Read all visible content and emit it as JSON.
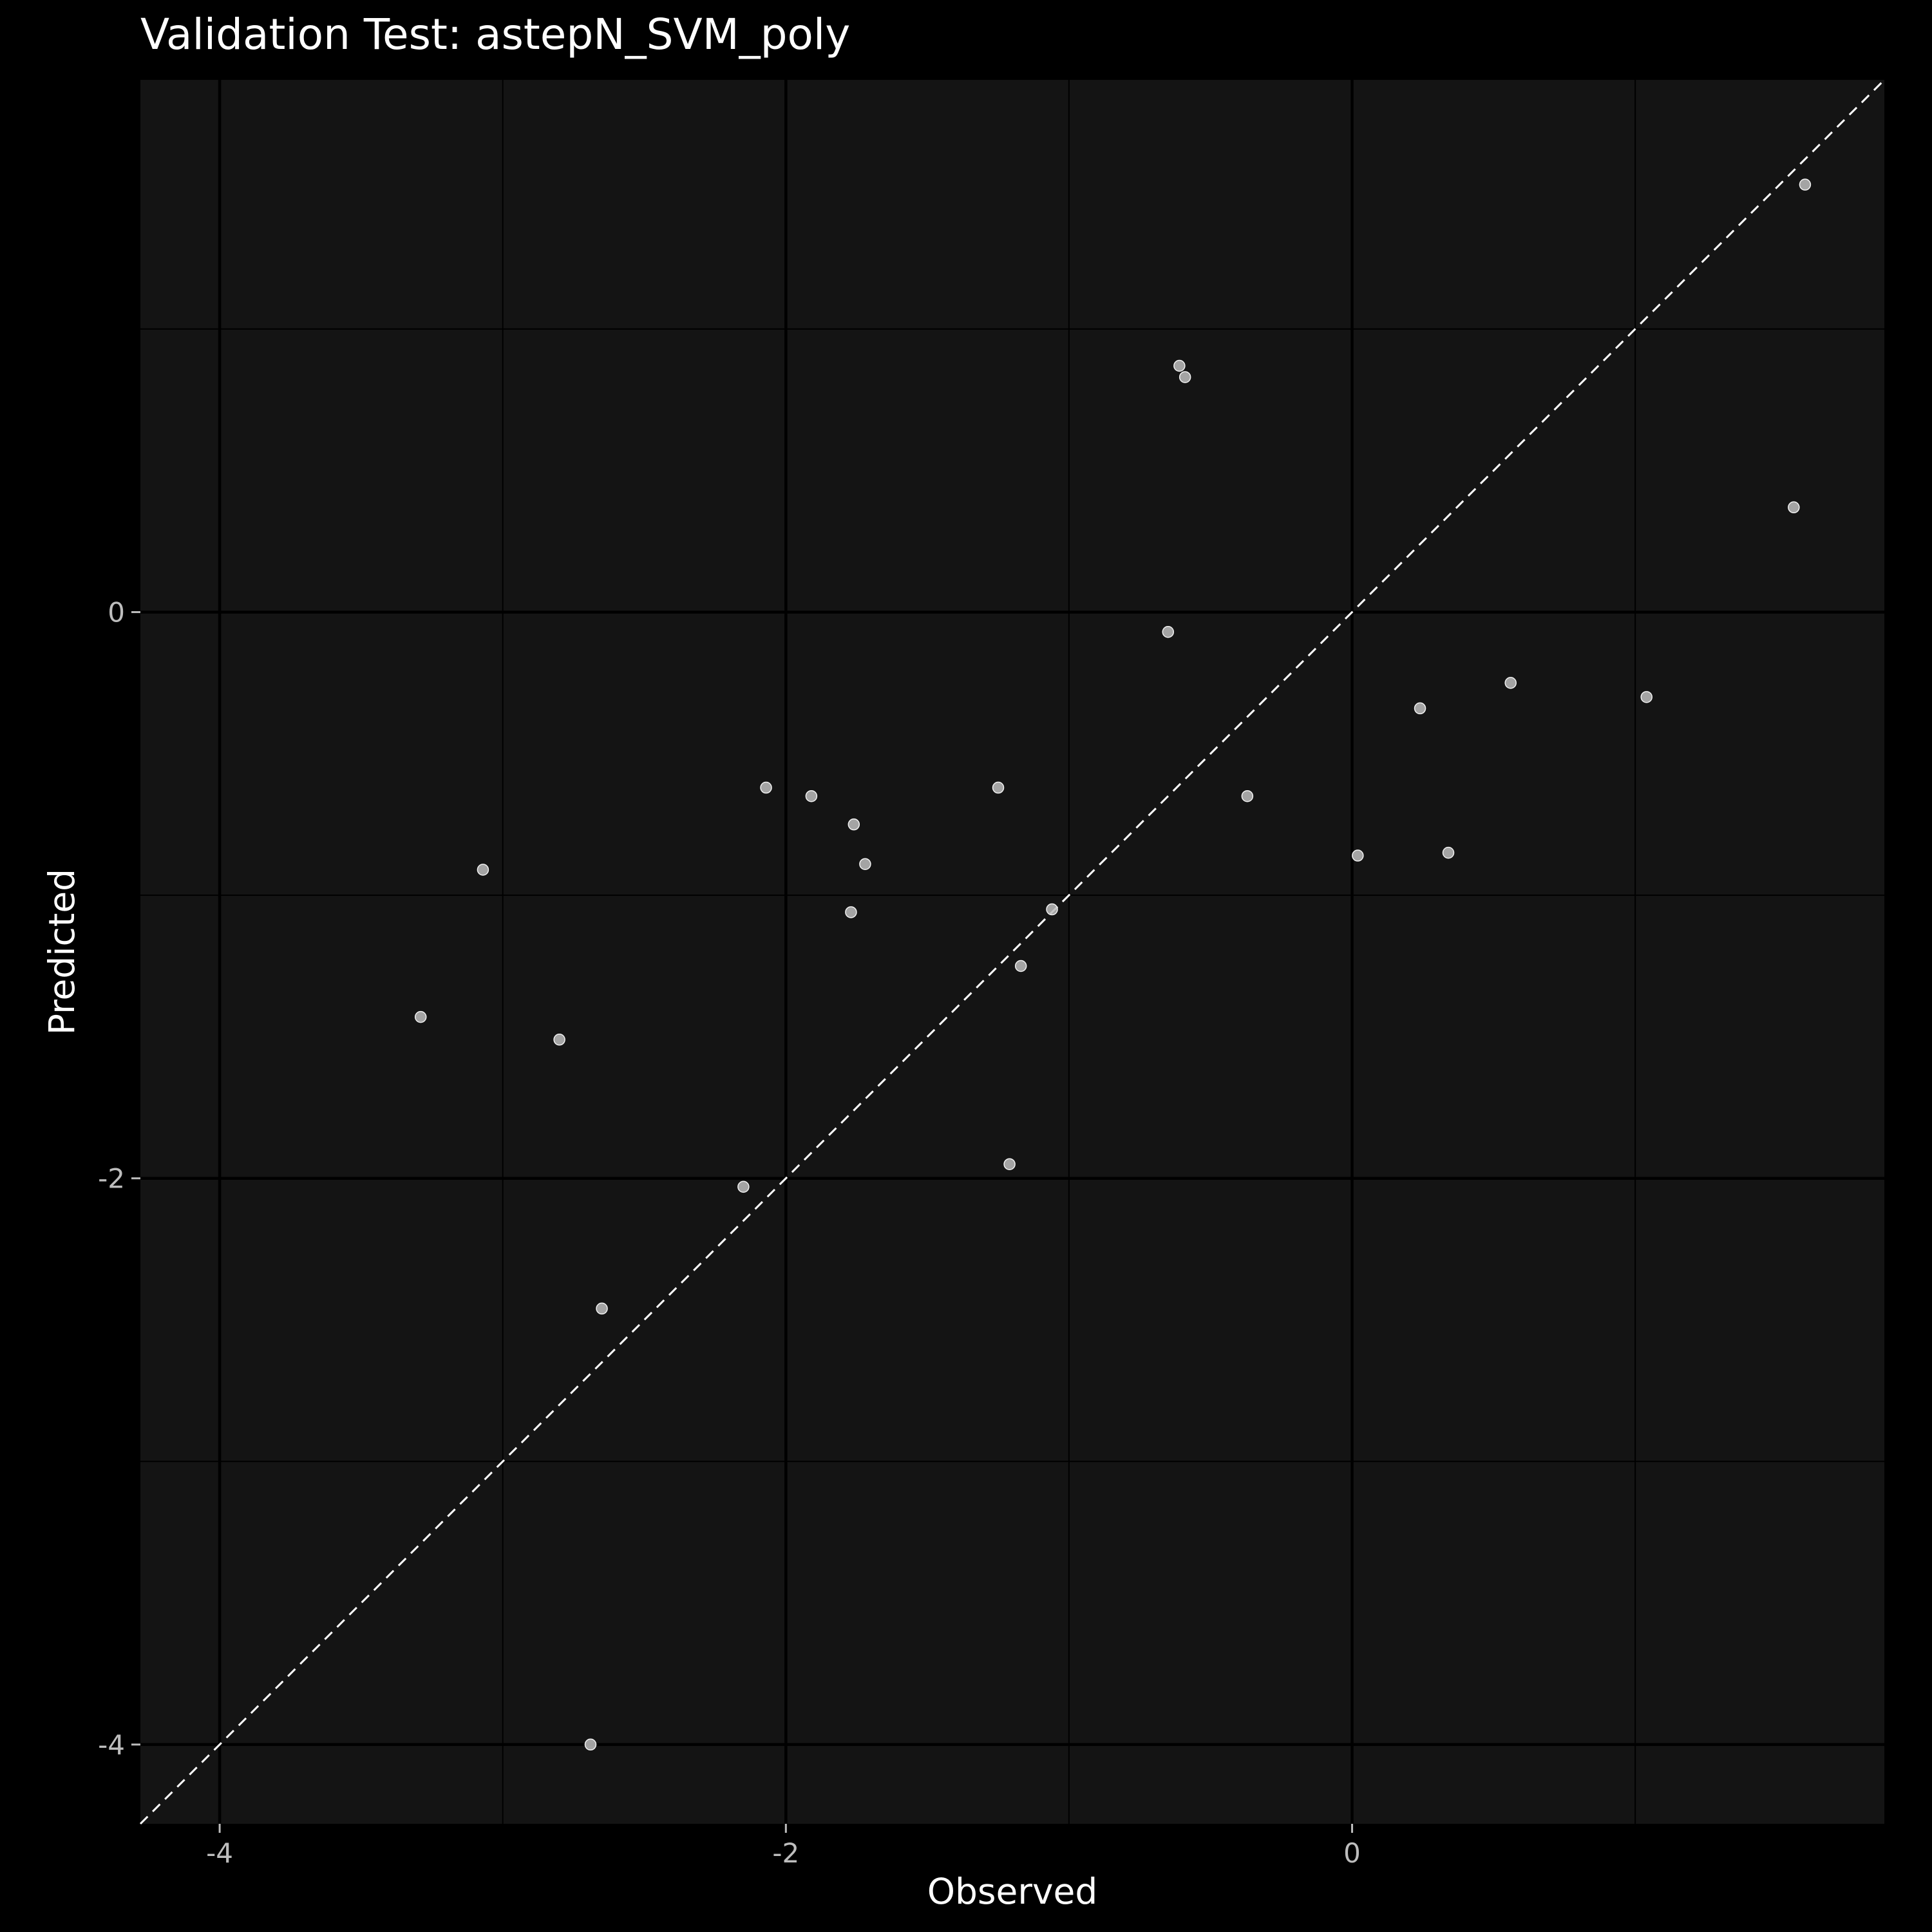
{
  "chart_data": {
    "type": "scatter",
    "title": "Validation Test: astepN_SVM_poly",
    "xlabel": "Observed",
    "ylabel": "Predicted",
    "xlim": [
      -4.28,
      1.88
    ],
    "ylim": [
      -4.28,
      1.88
    ],
    "x_ticks": [
      -4,
      -2,
      0
    ],
    "x_tick_labels": [
      "-4",
      "-2",
      "0"
    ],
    "y_ticks": [
      -4,
      -2,
      0
    ],
    "y_tick_labels": [
      "-4",
      "-2",
      "0"
    ],
    "grid": true,
    "reference_line": "y = x (dashed)",
    "colors": {
      "background": "#000000",
      "panel": "#141414",
      "grid": "#000000",
      "points": "#bdbdbd",
      "reference_line": "#ffffff"
    },
    "points": [
      {
        "x": 1.6,
        "y": 1.51
      },
      {
        "x": -0.61,
        "y": 0.87
      },
      {
        "x": -0.59,
        "y": 0.83
      },
      {
        "x": 1.56,
        "y": 0.37
      },
      {
        "x": -0.65,
        "y": -0.07
      },
      {
        "x": 0.56,
        "y": -0.25
      },
      {
        "x": 1.04,
        "y": -0.3
      },
      {
        "x": 0.24,
        "y": -0.34
      },
      {
        "x": -2.07,
        "y": -0.62
      },
      {
        "x": -1.25,
        "y": -0.62
      },
      {
        "x": -1.91,
        "y": -0.65
      },
      {
        "x": -0.37,
        "y": -0.65
      },
      {
        "x": -1.76,
        "y": -0.75
      },
      {
        "x": -1.72,
        "y": -0.89
      },
      {
        "x": 0.34,
        "y": -0.85
      },
      {
        "x": 0.02,
        "y": -0.86
      },
      {
        "x": -3.07,
        "y": -0.91
      },
      {
        "x": -1.06,
        "y": -1.05
      },
      {
        "x": -1.77,
        "y": -1.06
      },
      {
        "x": -1.17,
        "y": -1.25
      },
      {
        "x": -3.29,
        "y": -1.43
      },
      {
        "x": -2.8,
        "y": -1.51
      },
      {
        "x": -1.21,
        "y": -1.95
      },
      {
        "x": -2.15,
        "y": -2.03
      },
      {
        "x": -2.65,
        "y": -2.46
      },
      {
        "x": -2.69,
        "y": -4.0
      }
    ]
  }
}
